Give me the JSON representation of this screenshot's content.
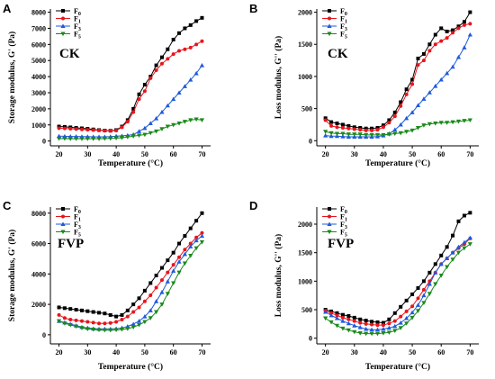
{
  "chart_data": [
    {
      "type": "line",
      "panel": "A",
      "panel_label": "CK",
      "xlabel": "Temperature (°C)",
      "ylabel": "Storage modulus, G' (Pa)",
      "xlim": [
        17,
        73
      ],
      "ylim": [
        -300,
        8200
      ],
      "xticks": [
        20,
        30,
        40,
        50,
        60,
        70
      ],
      "yticks": [
        0,
        1000,
        2000,
        3000,
        4000,
        5000,
        6000,
        7000,
        8000
      ],
      "legend": "top-left",
      "x": [
        20,
        22,
        24,
        26,
        28,
        30,
        32,
        34,
        36,
        38,
        40,
        42,
        44,
        46,
        48,
        50,
        52,
        54,
        56,
        58,
        60,
        62,
        64,
        66,
        68,
        70
      ],
      "series": [
        {
          "name": "F0",
          "sub": "0",
          "color": "#000000",
          "marker": "square",
          "values": [
            900,
            880,
            850,
            820,
            790,
            760,
            720,
            680,
            650,
            640,
            680,
            900,
            1300,
            2000,
            2900,
            3500,
            4000,
            4700,
            5200,
            5700,
            6300,
            6700,
            7000,
            7200,
            7450,
            7650
          ]
        },
        {
          "name": "F1",
          "sub": "1",
          "color": "#e8141c",
          "marker": "circle",
          "values": [
            800,
            780,
            760,
            740,
            720,
            700,
            680,
            660,
            640,
            630,
            650,
            850,
            1200,
            1800,
            2600,
            3100,
            3900,
            4400,
            4800,
            5100,
            5400,
            5600,
            5700,
            5800,
            6000,
            6200
          ]
        },
        {
          "name": "F3",
          "sub": "3",
          "color": "#1e5adc",
          "marker": "triangle-up",
          "values": [
            300,
            290,
            280,
            280,
            270,
            270,
            260,
            260,
            260,
            270,
            300,
            320,
            350,
            400,
            600,
            800,
            1100,
            1400,
            1800,
            2200,
            2600,
            3000,
            3400,
            3800,
            4200,
            4700
          ]
        },
        {
          "name": "F5",
          "sub": "5",
          "color": "#1a8a1a",
          "marker": "triangle-down",
          "values": [
            150,
            150,
            140,
            140,
            140,
            140,
            140,
            140,
            150,
            160,
            180,
            200,
            250,
            300,
            350,
            400,
            500,
            600,
            750,
            900,
            1000,
            1100,
            1200,
            1300,
            1350,
            1300
          ]
        }
      ]
    },
    {
      "type": "line",
      "panel": "B",
      "panel_label": "CK",
      "xlabel": "Temperature (°C)",
      "ylabel": "Loss modulus, G'' (Pa)",
      "xlim": [
        17,
        73
      ],
      "ylim": [
        -80,
        2050
      ],
      "xticks": [
        20,
        30,
        40,
        50,
        60,
        70
      ],
      "yticks": [
        0,
        500,
        1000,
        1500,
        2000
      ],
      "legend": "top-left",
      "x": [
        20,
        22,
        24,
        26,
        28,
        30,
        32,
        34,
        36,
        38,
        40,
        42,
        44,
        46,
        48,
        50,
        52,
        54,
        56,
        58,
        60,
        62,
        64,
        66,
        68,
        70
      ],
      "series": [
        {
          "name": "F0",
          "sub": "0",
          "color": "#000000",
          "marker": "square",
          "values": [
            350,
            290,
            270,
            250,
            230,
            210,
            200,
            190,
            190,
            200,
            240,
            320,
            440,
            600,
            800,
            950,
            1280,
            1350,
            1500,
            1650,
            1750,
            1700,
            1720,
            1780,
            1850,
            2000
          ]
        },
        {
          "name": "F1",
          "sub": "1",
          "color": "#e8141c",
          "marker": "circle",
          "values": [
            320,
            230,
            210,
            200,
            190,
            180,
            170,
            160,
            160,
            170,
            210,
            280,
            380,
            540,
            720,
            880,
            1180,
            1250,
            1400,
            1500,
            1550,
            1600,
            1680,
            1750,
            1800,
            1820
          ]
        },
        {
          "name": "F3",
          "sub": "3",
          "color": "#1e5adc",
          "marker": "triangle-up",
          "values": [
            80,
            70,
            70,
            65,
            60,
            60,
            60,
            60,
            60,
            65,
            80,
            110,
            170,
            250,
            350,
            440,
            550,
            650,
            750,
            850,
            950,
            1050,
            1150,
            1300,
            1450,
            1650
          ]
        },
        {
          "name": "F5",
          "sub": "5",
          "color": "#1a8a1a",
          "marker": "triangle-down",
          "values": [
            140,
            120,
            110,
            110,
            100,
            100,
            100,
            90,
            90,
            90,
            90,
            100,
            110,
            120,
            140,
            160,
            200,
            240,
            260,
            270,
            280,
            280,
            290,
            300,
            310,
            320
          ]
        }
      ]
    },
    {
      "type": "line",
      "panel": "C",
      "panel_label": "FVP",
      "xlabel": "Temperature (°C)",
      "ylabel": "Storage modulus, G' (Pa)",
      "xlim": [
        17,
        73
      ],
      "ylim": [
        -600,
        8400
      ],
      "xticks": [
        20,
        30,
        40,
        50,
        60,
        70
      ],
      "yticks": [
        0,
        2000,
        4000,
        6000,
        8000
      ],
      "legend": "top-left",
      "x": [
        20,
        22,
        24,
        26,
        28,
        30,
        32,
        34,
        36,
        38,
        40,
        42,
        44,
        46,
        48,
        50,
        52,
        54,
        56,
        58,
        60,
        62,
        64,
        66,
        68,
        70
      ],
      "series": [
        {
          "name": "F0",
          "sub": "0",
          "color": "#000000",
          "marker": "square",
          "values": [
            1800,
            1750,
            1700,
            1650,
            1600,
            1550,
            1500,
            1450,
            1400,
            1300,
            1200,
            1300,
            1600,
            2000,
            2400,
            2900,
            3400,
            3900,
            4400,
            4900,
            5400,
            6000,
            6500,
            7000,
            7500,
            8000
          ]
        },
        {
          "name": "F1",
          "sub": "1",
          "color": "#e8141c",
          "marker": "circle",
          "values": [
            1300,
            1100,
            1000,
            950,
            900,
            850,
            800,
            750,
            750,
            780,
            850,
            1000,
            1200,
            1500,
            1800,
            2200,
            2600,
            3100,
            3600,
            4100,
            4600,
            5100,
            5600,
            6000,
            6400,
            6700
          ]
        },
        {
          "name": "F3",
          "sub": "3",
          "color": "#1e5adc",
          "marker": "triangle-up",
          "values": [
            900,
            800,
            700,
            600,
            500,
            450,
            400,
            380,
            380,
            380,
            400,
            450,
            550,
            700,
            900,
            1200,
            1600,
            2200,
            2800,
            3500,
            4200,
            4800,
            5300,
            5800,
            6200,
            6500
          ]
        },
        {
          "name": "F5",
          "sub": "5",
          "color": "#1a8a1a",
          "marker": "triangle-down",
          "values": [
            900,
            750,
            650,
            550,
            450,
            380,
            350,
            320,
            300,
            300,
            320,
            350,
            400,
            500,
            650,
            850,
            1100,
            1500,
            2000,
            2700,
            3400,
            4100,
            4700,
            5200,
            5700,
            6100
          ]
        }
      ]
    },
    {
      "type": "line",
      "panel": "D",
      "panel_label": "FVP",
      "xlabel": "Temperature (°C)",
      "ylabel": "Loss modulus, G'' (Pa)",
      "xlim": [
        17,
        73
      ],
      "ylim": [
        -100,
        2300
      ],
      "xticks": [
        20,
        30,
        40,
        50,
        60,
        70
      ],
      "yticks": [
        0,
        500,
        1000,
        1500,
        2000
      ],
      "legend": "top-left",
      "x": [
        20,
        22,
        24,
        26,
        28,
        30,
        32,
        34,
        36,
        38,
        40,
        42,
        44,
        46,
        48,
        50,
        52,
        54,
        56,
        58,
        60,
        62,
        64,
        66,
        68,
        70
      ],
      "series": [
        {
          "name": "F0",
          "sub": "0",
          "color": "#000000",
          "marker": "square",
          "values": [
            500,
            470,
            440,
            410,
            390,
            360,
            330,
            310,
            290,
            280,
            270,
            330,
            440,
            550,
            660,
            770,
            880,
            1000,
            1150,
            1300,
            1450,
            1600,
            1800,
            2050,
            2150,
            2200
          ]
        },
        {
          "name": "F1",
          "sub": "1",
          "color": "#e8141c",
          "marker": "circle",
          "values": [
            480,
            440,
            400,
            360,
            330,
            300,
            270,
            250,
            240,
            230,
            230,
            260,
            300,
            380,
            470,
            560,
            700,
            850,
            1000,
            1150,
            1300,
            1400,
            1500,
            1580,
            1650,
            1750
          ]
        },
        {
          "name": "F3",
          "sub": "3",
          "color": "#1e5adc",
          "marker": "triangle-up",
          "values": [
            460,
            400,
            350,
            300,
            260,
            220,
            190,
            160,
            150,
            150,
            160,
            180,
            210,
            270,
            350,
            450,
            580,
            750,
            950,
            1150,
            1300,
            1400,
            1500,
            1600,
            1680,
            1760
          ]
        },
        {
          "name": "F5",
          "sub": "5",
          "color": "#1a8a1a",
          "marker": "triangle-down",
          "values": [
            350,
            280,
            220,
            170,
            140,
            110,
            90,
            80,
            80,
            80,
            90,
            100,
            130,
            180,
            260,
            360,
            480,
            620,
            780,
            950,
            1100,
            1250,
            1380,
            1500,
            1580,
            1650
          ]
        }
      ]
    }
  ]
}
